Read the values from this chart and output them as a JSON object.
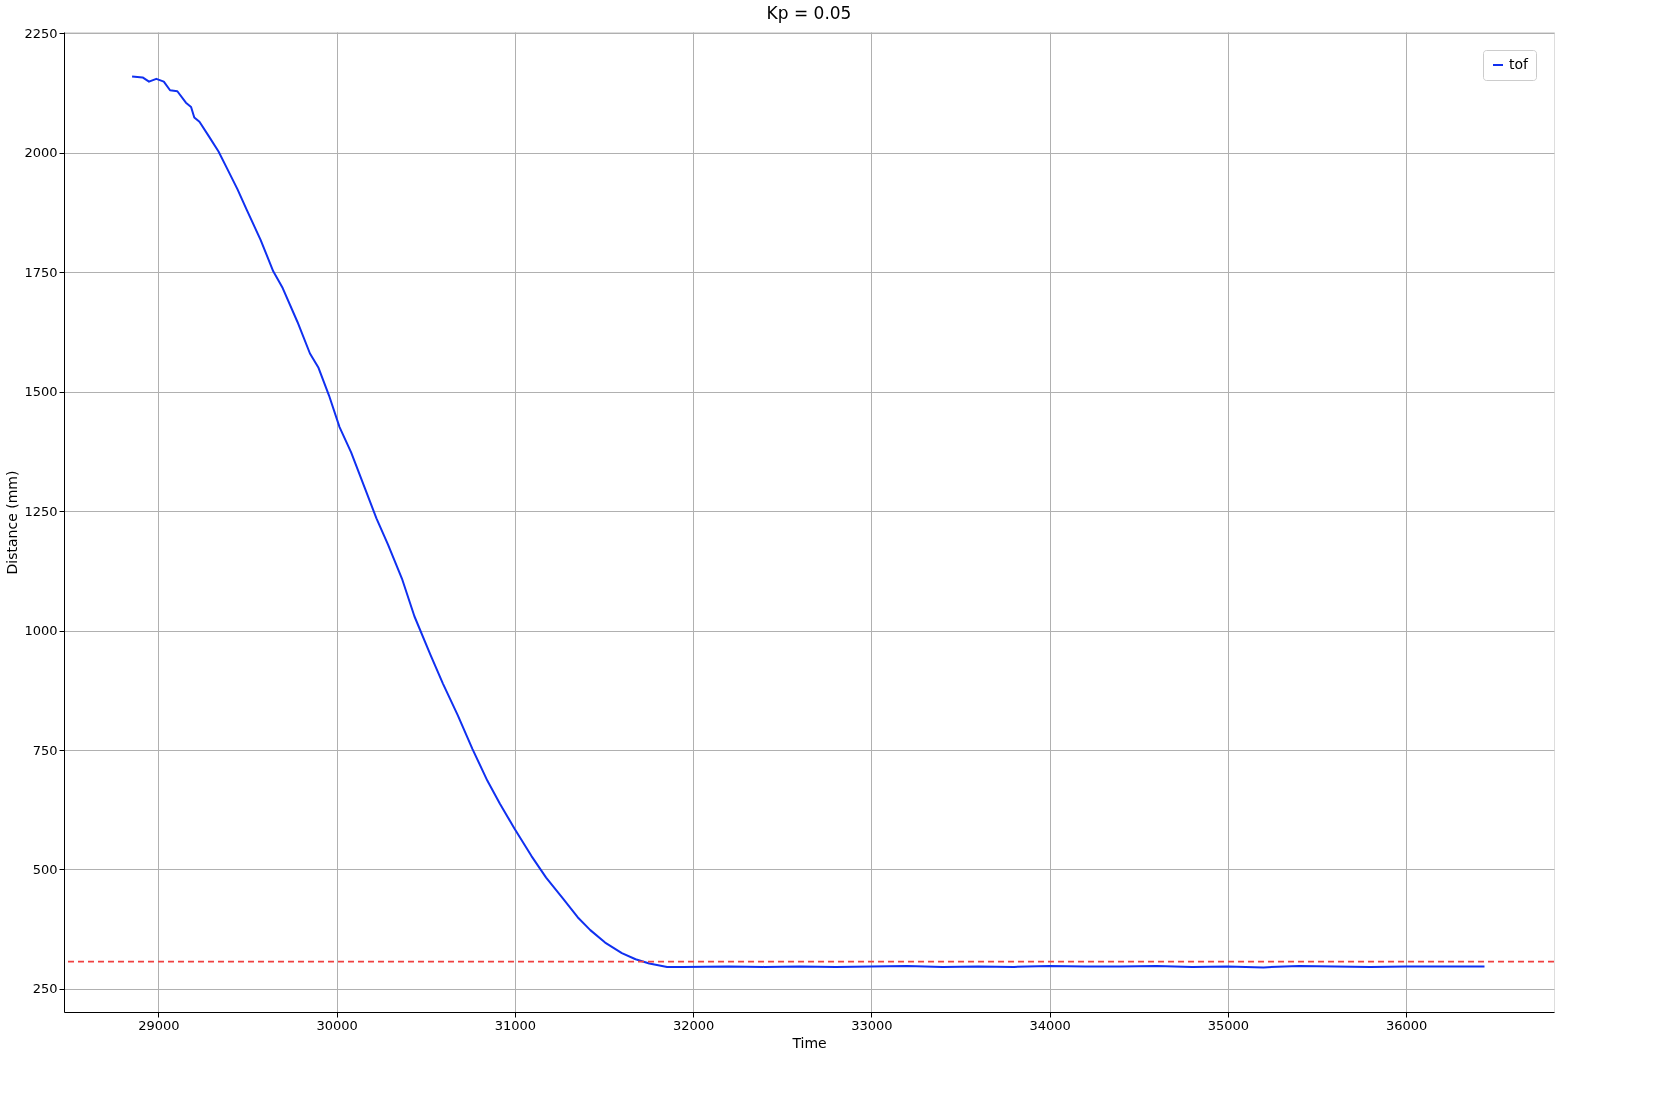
{
  "chart_data": {
    "type": "line",
    "title": "Kp = 0.05",
    "xlabel": "Time",
    "ylabel": "Distance (mm)",
    "xlim": [
      28470,
      36830
    ],
    "xticks": [
      29000,
      30000,
      31000,
      32000,
      33000,
      34000,
      35000,
      36000
    ],
    "ylim": [
      201.6,
      2253
    ],
    "yticks": [
      250,
      500,
      750,
      1000,
      1250,
      1500,
      1750,
      2000,
      2250
    ],
    "grid": true,
    "legend": "top right",
    "line_style": "solid",
    "marker": "none",
    "ref_lines": [
      {
        "axis": "y",
        "value": 307,
        "color": "#f04040",
        "line_style": "dashed"
      }
    ],
    "series": [
      {
        "name": "tof",
        "color": "#1030f0",
        "x": [
          28852,
          28911,
          28947,
          28988,
          29030,
          29065,
          29106,
          29154,
          29183,
          29201,
          29230,
          29284,
          29337,
          29384,
          29443,
          29496,
          29573,
          29644,
          29697,
          29780,
          29850,
          29898,
          29957,
          30016,
          30081,
          30158,
          30223,
          30288,
          30366,
          30436,
          30525,
          30596,
          30679,
          30762,
          30845,
          30915,
          30998,
          31093,
          31175,
          31270,
          31352,
          31423,
          31506,
          31600,
          31677,
          31754,
          31854,
          31943,
          32200,
          32400,
          32600,
          32800,
          33000,
          33200,
          33400,
          33600,
          33800,
          34000,
          34200,
          34400,
          34600,
          34800,
          35000,
          35200,
          35400,
          35600,
          35800,
          36000,
          36200,
          36440
        ],
        "values": [
          2160,
          2158,
          2149,
          2155,
          2149,
          2131,
          2129,
          2105,
          2096,
          2074,
          2065,
          2034,
          2003,
          1968,
          1924,
          1880,
          1818,
          1752,
          1717,
          1646,
          1580,
          1550,
          1492,
          1426,
          1373,
          1298,
          1235,
          1180,
          1109,
          1030,
          950,
          889,
          823,
          752,
          686,
          638,
          585,
          528,
          483,
          439,
          400,
          373,
          347,
          325,
          312,
          303,
          296,
          296,
          297,
          296,
          297,
          296,
          297,
          298,
          296,
          297,
          296,
          298,
          297,
          297,
          298,
          296,
          297,
          295,
          298,
          297,
          296,
          297,
          297,
          297
        ]
      }
    ]
  }
}
